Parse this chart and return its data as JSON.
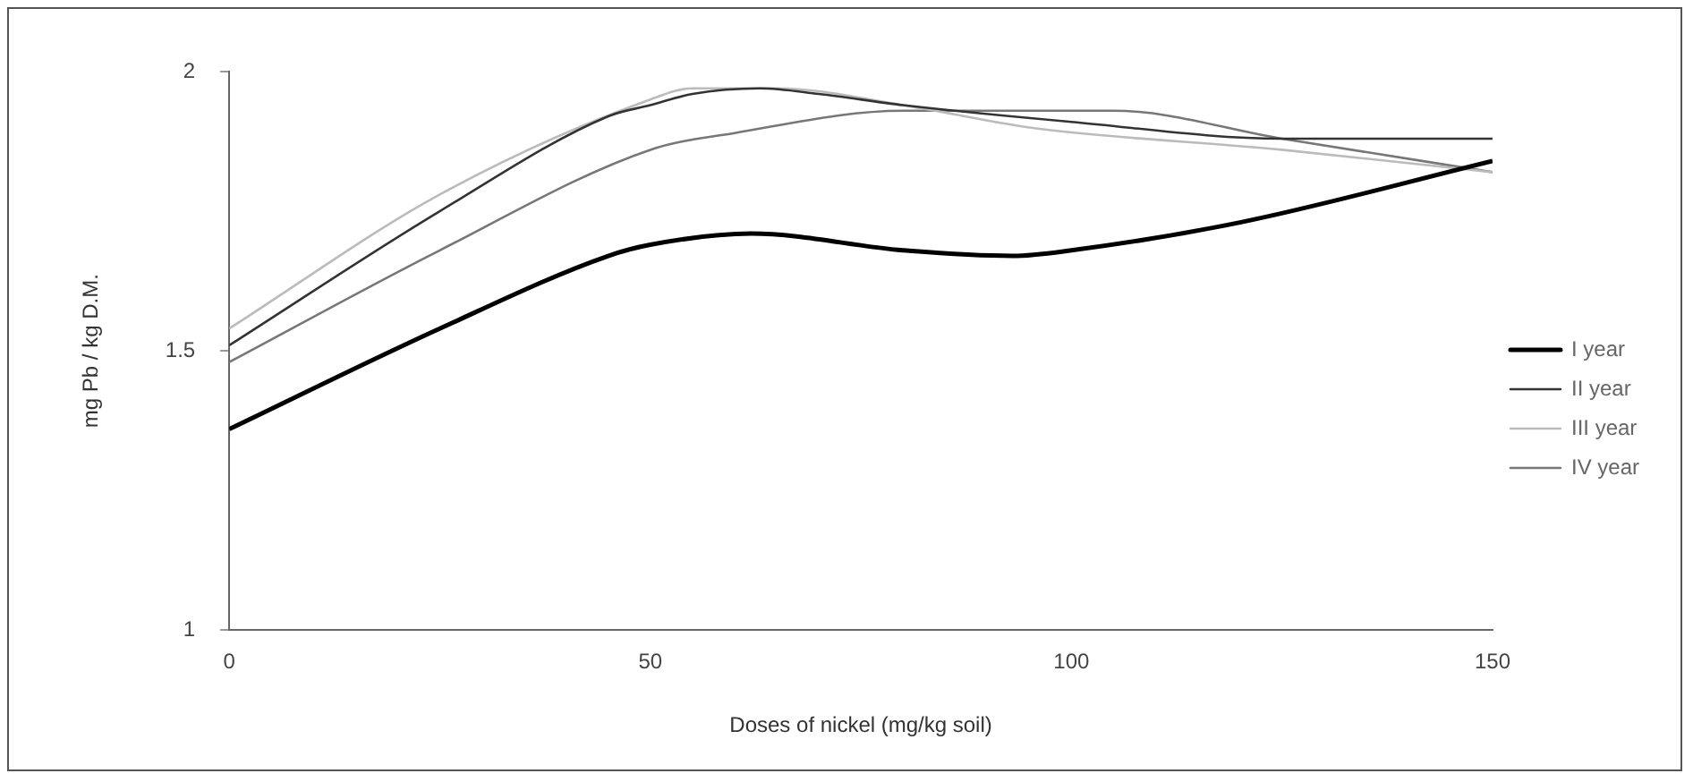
{
  "chart_data": {
    "type": "line",
    "xlabel": "Doses of nickel (mg/kg soil)",
    "ylabel": "mg Pb / kg D.M.",
    "xlim": [
      0,
      150
    ],
    "xticks": [
      0,
      50,
      100,
      150
    ],
    "ylim": [
      1,
      2
    ],
    "yticks": [
      1,
      1.5,
      2
    ],
    "grid": false,
    "legend": "right",
    "marker": "none",
    "line_style": "solid",
    "series": [
      {
        "name": "I year",
        "color": "#000000",
        "x": [
          0,
          25,
          45,
          50,
          62,
          80,
          93,
          100,
          120,
          150
        ],
        "values": [
          1.36,
          1.54,
          1.67,
          1.69,
          1.71,
          1.68,
          1.67,
          1.68,
          1.73,
          1.84
        ]
      },
      {
        "name": "II year",
        "color": "#333333",
        "x": [
          0,
          25,
          45,
          50,
          55,
          63,
          70,
          80,
          100,
          125,
          150
        ],
        "values": [
          1.51,
          1.75,
          1.92,
          1.94,
          1.96,
          1.97,
          1.96,
          1.94,
          1.91,
          1.88,
          1.88
        ]
      },
      {
        "name": "III year",
        "color": "#bbbbbb",
        "x": [
          0,
          25,
          50,
          55,
          65,
          80,
          95,
          125,
          150
        ],
        "values": [
          1.54,
          1.78,
          1.95,
          1.97,
          1.97,
          1.94,
          1.9,
          1.86,
          1.82
        ]
      },
      {
        "name": "IV year",
        "color": "#777777",
        "x": [
          0,
          25,
          50,
          60,
          80,
          105,
          125,
          150
        ],
        "values": [
          1.48,
          1.68,
          1.86,
          1.89,
          1.93,
          1.93,
          1.88,
          1.82
        ]
      }
    ]
  }
}
